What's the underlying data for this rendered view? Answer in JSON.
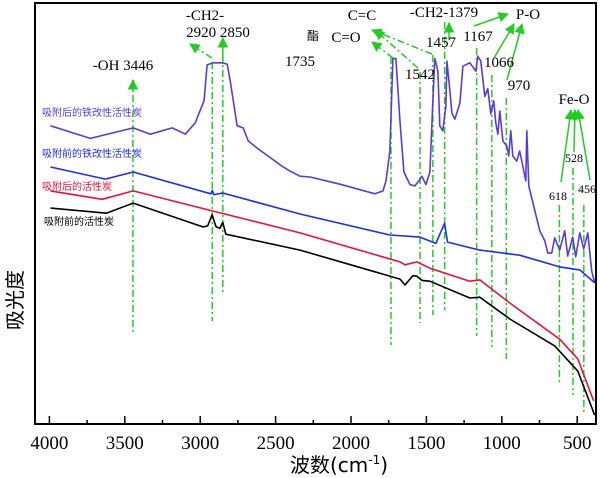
{
  "chart_data": {
    "type": "line",
    "xlabel": "波数(cm",
    "xlabel_sup": "-1",
    "xlabel_close": ")",
    "ylabel": "吸光度",
    "xlim": [
      4090,
      380
    ],
    "x_reversed": true,
    "xticks": [
      4000,
      3500,
      3000,
      2500,
      2000,
      1500,
      1000,
      500
    ],
    "y_ticks_shown": false,
    "grid": false,
    "legend_placement": "inline-left",
    "series": [
      {
        "name": "吸附后的铁改性活性炭",
        "color": "#5a3bd8",
        "points": [
          [
            3993,
            71
          ],
          [
            3729,
            68
          ],
          [
            3444,
            70.5
          ],
          [
            3331,
            69
          ],
          [
            3186,
            70.5
          ],
          [
            3099,
            69
          ],
          [
            3033,
            71.7
          ],
          [
            2974,
            77
          ],
          [
            2954,
            85.5
          ],
          [
            2914,
            86
          ],
          [
            2854,
            86
          ],
          [
            2821,
            85.7
          ],
          [
            2801,
            81.7
          ],
          [
            2755,
            71
          ],
          [
            2715,
            70.5
          ],
          [
            2682,
            67.4
          ],
          [
            2616,
            65.5
          ],
          [
            2503,
            62.6
          ],
          [
            2470,
            61.7
          ],
          [
            2404,
            60.2
          ],
          [
            2338,
            59
          ],
          [
            2272,
            58.8
          ],
          [
            2073,
            57.1
          ],
          [
            1841,
            54.8
          ],
          [
            1788,
            55.5
          ],
          [
            1768,
            57.9
          ],
          [
            1742,
            65
          ],
          [
            1722,
            87
          ],
          [
            1702,
            87
          ],
          [
            1675,
            72
          ],
          [
            1649,
            60
          ],
          [
            1609,
            57
          ],
          [
            1576,
            56.7
          ],
          [
            1550,
            57.9
          ],
          [
            1530,
            59
          ],
          [
            1503,
            57
          ],
          [
            1477,
            60
          ],
          [
            1457,
            77
          ],
          [
            1444,
            87
          ],
          [
            1424,
            84
          ],
          [
            1411,
            71
          ],
          [
            1391,
            69.8
          ],
          [
            1371,
            75.7
          ],
          [
            1364,
            86.4
          ],
          [
            1344,
            79.3
          ],
          [
            1331,
            74
          ],
          [
            1311,
            72.6
          ],
          [
            1278,
            76.4
          ],
          [
            1258,
            85.2
          ],
          [
            1212,
            86
          ],
          [
            1172,
            84
          ],
          [
            1159,
            87.6
          ],
          [
            1139,
            86.4
          ],
          [
            1113,
            78
          ],
          [
            1093,
            79.8
          ],
          [
            1073,
            73.8
          ],
          [
            1053,
            76.9
          ],
          [
            1040,
            71.7
          ],
          [
            1026,
            69
          ],
          [
            1013,
            74.5
          ],
          [
            993,
            67.4
          ],
          [
            967,
            66.2
          ],
          [
            954,
            63.8
          ],
          [
            940,
            69.8
          ],
          [
            927,
            63.8
          ],
          [
            901,
            62.6
          ],
          [
            881,
            65
          ],
          [
            861,
            61.4
          ],
          [
            841,
            57.9
          ],
          [
            834,
            69.8
          ],
          [
            821,
            56.7
          ],
          [
            748,
            46
          ],
          [
            715,
            43.6
          ],
          [
            695,
            40.7
          ],
          [
            669,
            40.7
          ],
          [
            649,
            44.3
          ],
          [
            616,
            41.4
          ],
          [
            583,
            46
          ],
          [
            563,
            40
          ],
          [
            530,
            44.5
          ],
          [
            510,
            39.8
          ],
          [
            483,
            45.5
          ],
          [
            457,
            41.7
          ],
          [
            430,
            45.5
          ],
          [
            404,
            36.4
          ],
          [
            384,
            33.6
          ]
        ]
      },
      {
        "name": "吸附前的铁改性活性炭",
        "color": "#1f2fe8",
        "points": [
          [
            3993,
            61.2
          ],
          [
            3629,
            58.3
          ],
          [
            3444,
            60
          ],
          [
            2930,
            54.8
          ],
          [
            2920,
            55.6
          ],
          [
            2910,
            54.6
          ],
          [
            2850,
            55
          ],
          [
            2338,
            50
          ],
          [
            1742,
            45
          ],
          [
            1543,
            44.5
          ],
          [
            1437,
            43
          ],
          [
            1379,
            47.8
          ],
          [
            1360,
            43.3
          ],
          [
            1146,
            41.4
          ],
          [
            881,
            40.2
          ],
          [
            616,
            37.4
          ],
          [
            483,
            36.7
          ],
          [
            384,
            33.6
          ]
        ]
      },
      {
        "name": "吸附后的活性炭",
        "color": "#e8123a",
        "points": [
          [
            3993,
            55.5
          ],
          [
            3650,
            53.5
          ],
          [
            3444,
            55.5
          ],
          [
            2914,
            50.7
          ],
          [
            2338,
            45.5
          ],
          [
            1675,
            38.6
          ],
          [
            1642,
            37.9
          ],
          [
            1563,
            38.6
          ],
          [
            1477,
            37.1
          ],
          [
            1212,
            34
          ],
          [
            1146,
            34.3
          ],
          [
            947,
            28.8
          ],
          [
            616,
            20.2
          ],
          [
            496,
            15.5
          ],
          [
            391,
            5.5
          ]
        ]
      },
      {
        "name": "吸附前的活性炭",
        "color": "#000000",
        "points": [
          [
            3993,
            51.4
          ],
          [
            3623,
            50.2
          ],
          [
            3444,
            52.6
          ],
          [
            2980,
            46.9
          ],
          [
            2950,
            47.2
          ],
          [
            2921,
            49.8
          ],
          [
            2895,
            47
          ],
          [
            2870,
            46.6
          ],
          [
            2850,
            48
          ],
          [
            2830,
            45.2
          ],
          [
            2338,
            41.4
          ],
          [
            1675,
            34.5
          ],
          [
            1642,
            33.1
          ],
          [
            1590,
            35.3
          ],
          [
            1563,
            35.2
          ],
          [
            1530,
            34.2
          ],
          [
            1477,
            34
          ],
          [
            1212,
            30
          ],
          [
            1146,
            30.2
          ],
          [
            947,
            25
          ],
          [
            649,
            18.6
          ],
          [
            496,
            12.6
          ],
          [
            384,
            2.1
          ]
        ]
      }
    ],
    "peak_markers": [
      3446,
      2920,
      2850,
      1735,
      1542,
      1457,
      1379,
      1167,
      1066,
      970,
      618,
      528,
      456
    ],
    "marker_color": "#22cc22",
    "annotations": {
      "ch2_top": "-CH2-",
      "ch2_peaks": "2920 2850",
      "oh": "-OH 3446",
      "p1735": "1735",
      "ester": "酯",
      "co": "C=O",
      "cc": "C=C",
      "ch2_1379": "-CH2-1379",
      "p1457": "1457",
      "p1542": "1542",
      "p1167": "1167",
      "po": "P-O",
      "p1066": "1066",
      "p970": "970",
      "feo": "Fe-O",
      "p528": "528",
      "p618": "618",
      "p456": "456"
    }
  }
}
